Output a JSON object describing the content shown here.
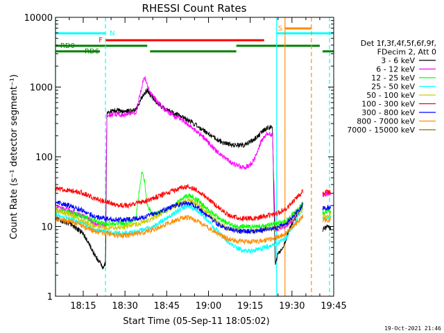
{
  "chart_data": {
    "type": "line",
    "title": "RHESSI Count Rates",
    "xlabel": "Start Time (05-Sep-11 18:05:02)",
    "ylabel": "Count Rate (s⁻¹ detector segment⁻¹)",
    "xlim": [
      "18:05:02",
      "19:45:00"
    ],
    "ylim": [
      1,
      10000
    ],
    "yscale": "log",
    "x_ticks": [
      "18:15",
      "18:30",
      "18:45",
      "19:00",
      "19:15",
      "19:30",
      "19:45"
    ],
    "y_ticks": [
      "1",
      "10",
      "100",
      "1000",
      "10000"
    ],
    "legend_position": "right",
    "legend_header": [
      "Det 1f,3f,4f,5f,6f,9f,",
      "FDecim 2, Att 0"
    ],
    "timestamp": "19-Oct-2021 21:46",
    "flags": {
      "night": {
        "label": "N",
        "color": "#00ffff",
        "segments": [
          [
            "18:05:02",
            "18:23:00"
          ],
          [
            "19:24:30",
            "19:45:00"
          ]
        ]
      },
      "saa": {
        "label": "S",
        "color": "#ff8c00",
        "segments": [
          [
            "19:27:30",
            "19:37:00"
          ]
        ]
      },
      "flare": {
        "label": "F",
        "color": "#ff0000",
        "segments": [
          [
            "18:23:00",
            "19:20:00"
          ]
        ]
      },
      "rd0": {
        "label": "RD0",
        "color": "#008000",
        "segments": [
          [
            "18:05:02",
            "18:38:00"
          ],
          [
            "19:10:00",
            "19:40:00"
          ]
        ]
      },
      "rd6": {
        "label": "RD6",
        "color": "#008000",
        "segments": [
          [
            "18:05:02",
            "18:21:00"
          ],
          [
            "18:39:00",
            "19:10:00"
          ],
          [
            "19:41:00",
            "19:45:00"
          ]
        ]
      }
    },
    "markers": [
      {
        "time": "18:05:02",
        "style": "solid",
        "color": "#00ffff"
      },
      {
        "time": "18:23:00",
        "style": "dashed",
        "color": "#00ffff"
      },
      {
        "time": "19:24:30",
        "style": "solid",
        "color": "#00ffff"
      },
      {
        "time": "19:27:30",
        "style": "solid",
        "color": "#ff8c00"
      },
      {
        "time": "19:37:00",
        "style": "dashed",
        "color": "#ff8c00"
      },
      {
        "time": "19:43:30",
        "style": "dashed",
        "color": "#00ffff"
      }
    ],
    "gaps": [
      [
        "19:34:00",
        "19:41:00"
      ]
    ],
    "series": [
      {
        "name": "3 - 6 keV",
        "color": "#000000",
        "points": [
          [
            "18:05:02",
            13
          ],
          [
            "18:10",
            11
          ],
          [
            "18:15",
            8
          ],
          [
            "18:19",
            4
          ],
          [
            "18:22",
            2.6
          ],
          [
            "18:23",
            3
          ],
          [
            "18:23:30",
            420
          ],
          [
            "18:26",
            460
          ],
          [
            "18:30",
            450
          ],
          [
            "18:34",
            470
          ],
          [
            "18:36",
            700
          ],
          [
            "18:38",
            900
          ],
          [
            "18:41",
            620
          ],
          [
            "18:45",
            470
          ],
          [
            "18:49",
            400
          ],
          [
            "18:53",
            330
          ],
          [
            "18:57",
            260
          ],
          [
            "19:01",
            200
          ],
          [
            "19:05",
            160
          ],
          [
            "19:09",
            145
          ],
          [
            "19:13",
            150
          ],
          [
            "19:16",
            170
          ],
          [
            "19:19",
            220
          ],
          [
            "19:21",
            260
          ],
          [
            "19:23",
            265
          ],
          [
            "19:24",
            3
          ],
          [
            "19:25",
            4
          ],
          [
            "19:27",
            5
          ],
          [
            "19:29",
            9
          ],
          [
            "19:31",
            13
          ],
          [
            "19:34",
            22
          ],
          [
            "19:41",
            9
          ],
          [
            "19:43",
            10
          ],
          [
            "19:44",
            9
          ]
        ]
      },
      {
        "name": "6 - 12 keV",
        "color": "#ff00ff",
        "points": [
          [
            "18:05:02",
            19
          ],
          [
            "18:10",
            17
          ],
          [
            "18:15",
            14
          ],
          [
            "18:19",
            11
          ],
          [
            "18:22",
            10
          ],
          [
            "18:23",
            10
          ],
          [
            "18:23:30",
            390
          ],
          [
            "18:26",
            410
          ],
          [
            "18:30",
            400
          ],
          [
            "18:34",
            440
          ],
          [
            "18:36",
            1000
          ],
          [
            "18:37",
            1400
          ],
          [
            "18:39",
            850
          ],
          [
            "18:42",
            600
          ],
          [
            "18:45",
            450
          ],
          [
            "18:48",
            370
          ],
          [
            "18:51",
            330
          ],
          [
            "18:54",
            260
          ],
          [
            "18:57",
            210
          ],
          [
            "19:00",
            160
          ],
          [
            "19:03",
            120
          ],
          [
            "19:06",
            95
          ],
          [
            "19:09",
            80
          ],
          [
            "19:12",
            70
          ],
          [
            "19:15",
            75
          ],
          [
            "19:17",
            100
          ],
          [
            "19:19",
            170
          ],
          [
            "19:21",
            210
          ],
          [
            "19:23",
            210
          ],
          [
            "19:24",
            9
          ],
          [
            "19:27",
            10
          ],
          [
            "19:30",
            12
          ],
          [
            "19:34",
            22
          ],
          [
            "19:41",
            28
          ],
          [
            "19:44",
            30
          ]
        ]
      },
      {
        "name": "12 - 25 keV",
        "color": "#00ff00",
        "points": [
          [
            "18:05:02",
            18
          ],
          [
            "18:10",
            16
          ],
          [
            "18:15",
            14
          ],
          [
            "18:19",
            12
          ],
          [
            "18:23",
            11
          ],
          [
            "18:26",
            11
          ],
          [
            "18:30",
            11
          ],
          [
            "18:33",
            12
          ],
          [
            "18:34",
            14
          ],
          [
            "18:36",
            60
          ],
          [
            "18:37",
            45
          ],
          [
            "18:38",
            20
          ],
          [
            "18:40",
            15
          ],
          [
            "18:45",
            17
          ],
          [
            "18:50",
            24
          ],
          [
            "18:53",
            28
          ],
          [
            "18:56",
            24
          ],
          [
            "19:00",
            17
          ],
          [
            "19:05",
            12
          ],
          [
            "19:10",
            10
          ],
          [
            "19:15",
            10
          ],
          [
            "19:20",
            10
          ],
          [
            "19:24",
            11
          ],
          [
            "19:28",
            12
          ],
          [
            "19:31",
            16
          ],
          [
            "19:34",
            21
          ],
          [
            "19:41",
            16
          ],
          [
            "19:44",
            17
          ]
        ]
      },
      {
        "name": "25 - 50 keV",
        "color": "#00ffff",
        "points": [
          [
            "18:05:02",
            15
          ],
          [
            "18:10",
            13
          ],
          [
            "18:15",
            11
          ],
          [
            "18:19",
            9
          ],
          [
            "18:23",
            8.5
          ],
          [
            "18:27",
            8
          ],
          [
            "18:31",
            8
          ],
          [
            "18:35",
            8.5
          ],
          [
            "18:40",
            10
          ],
          [
            "18:45",
            13
          ],
          [
            "18:50",
            18
          ],
          [
            "18:53",
            20
          ],
          [
            "18:56",
            17
          ],
          [
            "19:00",
            12
          ],
          [
            "19:04",
            8
          ],
          [
            "19:08",
            5.5
          ],
          [
            "19:12",
            4.5
          ],
          [
            "19:16",
            4.5
          ],
          [
            "19:20",
            5
          ],
          [
            "19:24",
            5.5
          ],
          [
            "19:28",
            7
          ],
          [
            "19:31",
            11
          ],
          [
            "19:34",
            18
          ],
          [
            "19:41",
            13
          ],
          [
            "19:44",
            14
          ]
        ]
      },
      {
        "name": "50 - 100 keV",
        "color": "#cccc00",
        "points": [
          [
            "18:05:02",
            17
          ],
          [
            "18:10",
            15
          ],
          [
            "18:15",
            12
          ],
          [
            "18:19",
            10
          ],
          [
            "18:23",
            9.5
          ],
          [
            "18:27",
            9.5
          ],
          [
            "18:31",
            10
          ],
          [
            "18:35",
            11
          ],
          [
            "18:40",
            13
          ],
          [
            "18:45",
            17
          ],
          [
            "18:50",
            22
          ],
          [
            "18:53",
            24
          ],
          [
            "18:56",
            21
          ],
          [
            "19:00",
            15
          ],
          [
            "19:04",
            11
          ],
          [
            "19:08",
            9
          ],
          [
            "19:12",
            8.5
          ],
          [
            "19:16",
            8.5
          ],
          [
            "19:20",
            9
          ],
          [
            "19:24",
            9.5
          ],
          [
            "19:28",
            11
          ],
          [
            "19:31",
            14
          ],
          [
            "19:34",
            19
          ],
          [
            "19:41",
            14
          ],
          [
            "19:44",
            15
          ]
        ]
      },
      {
        "name": "100 - 300 keV",
        "color": "#ff0000",
        "points": [
          [
            "18:05:02",
            35
          ],
          [
            "18:10",
            33
          ],
          [
            "18:15",
            30
          ],
          [
            "18:19",
            25
          ],
          [
            "18:23",
            23
          ],
          [
            "18:27",
            20
          ],
          [
            "18:31",
            20
          ],
          [
            "18:35",
            22
          ],
          [
            "18:40",
            25
          ],
          [
            "18:45",
            30
          ],
          [
            "18:50",
            36
          ],
          [
            "18:53",
            37
          ],
          [
            "18:56",
            33
          ],
          [
            "19:00",
            25
          ],
          [
            "19:04",
            18
          ],
          [
            "19:08",
            14
          ],
          [
            "19:12",
            13
          ],
          [
            "19:16",
            13
          ],
          [
            "19:20",
            14
          ],
          [
            "19:24",
            15
          ],
          [
            "19:28",
            18
          ],
          [
            "19:31",
            24
          ],
          [
            "19:34",
            32
          ],
          [
            "19:41",
            30
          ],
          [
            "19:44",
            32
          ]
        ]
      },
      {
        "name": "300 - 800 keV",
        "color": "#0000ff",
        "points": [
          [
            "18:05:02",
            22
          ],
          [
            "18:10",
            20
          ],
          [
            "18:15",
            17
          ],
          [
            "18:19",
            14
          ],
          [
            "18:23",
            13
          ],
          [
            "18:27",
            12.5
          ],
          [
            "18:31",
            12.5
          ],
          [
            "18:35",
            13
          ],
          [
            "18:40",
            15
          ],
          [
            "18:45",
            18
          ],
          [
            "18:50",
            21
          ],
          [
            "18:53",
            22
          ],
          [
            "18:56",
            19
          ],
          [
            "19:00",
            14
          ],
          [
            "19:04",
            10.5
          ],
          [
            "19:08",
            9
          ],
          [
            "19:12",
            8.5
          ],
          [
            "19:16",
            8.5
          ],
          [
            "19:20",
            9
          ],
          [
            "19:24",
            9.5
          ],
          [
            "19:28",
            11
          ],
          [
            "19:31",
            15
          ],
          [
            "19:34",
            20
          ],
          [
            "19:41",
            18
          ],
          [
            "19:44",
            19
          ]
        ]
      },
      {
        "name": "800 - 7000 keV",
        "color": "#ff8c00",
        "points": [
          [
            "18:05:02",
            13
          ],
          [
            "18:10",
            12
          ],
          [
            "18:15",
            10
          ],
          [
            "18:19",
            8.5
          ],
          [
            "18:23",
            8
          ],
          [
            "18:27",
            7.5
          ],
          [
            "18:31",
            7.5
          ],
          [
            "18:35",
            8
          ],
          [
            "18:40",
            9
          ],
          [
            "18:45",
            11
          ],
          [
            "18:50",
            13
          ],
          [
            "18:53",
            13.5
          ],
          [
            "18:56",
            12
          ],
          [
            "19:00",
            9.5
          ],
          [
            "19:04",
            7.5
          ],
          [
            "19:08",
            6.5
          ],
          [
            "19:12",
            6
          ],
          [
            "19:16",
            6
          ],
          [
            "19:20",
            6.3
          ],
          [
            "19:24",
            6.8
          ],
          [
            "19:28",
            8
          ],
          [
            "19:31",
            10.5
          ],
          [
            "19:34",
            14
          ],
          [
            "19:41",
            12
          ],
          [
            "19:44",
            12.5
          ]
        ]
      },
      {
        "name": "7000 - 15000 keV",
        "color": "#8b6914",
        "points": []
      }
    ]
  }
}
